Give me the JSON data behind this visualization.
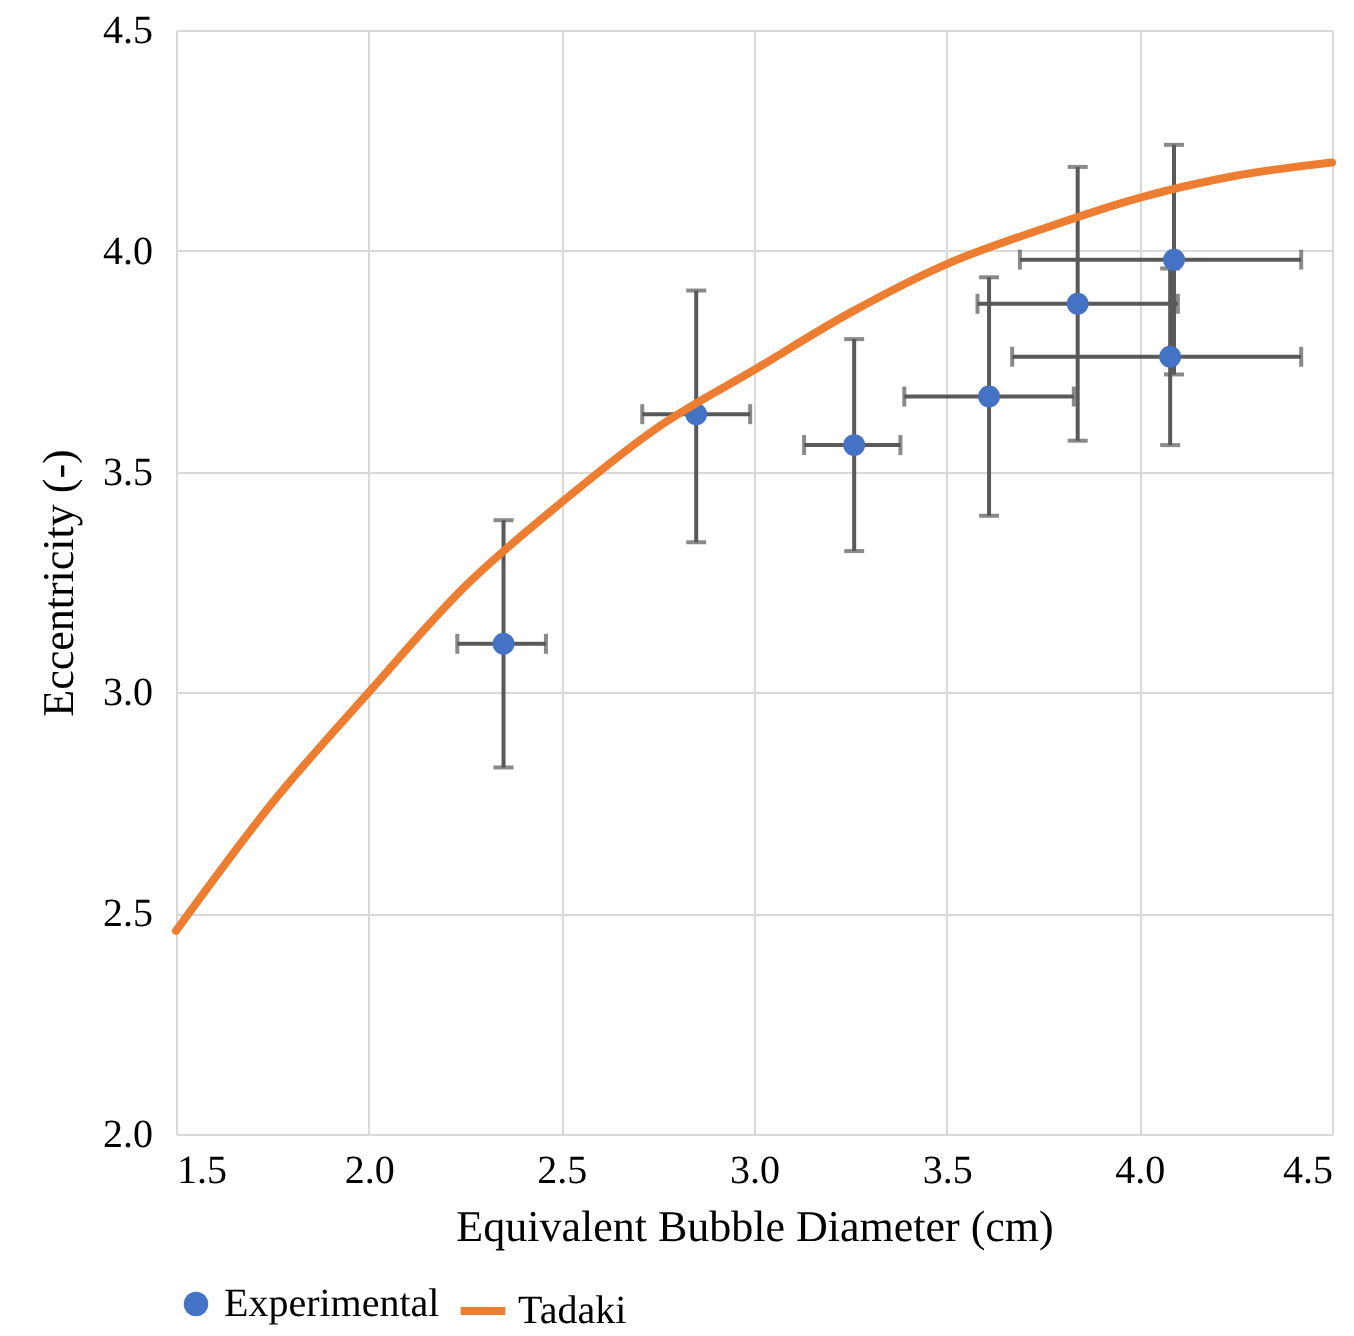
{
  "chart_data": {
    "type": "scatter",
    "xlabel": "Equivalent Bubble Diameter (cm)",
    "ylabel": "Eccentricity (-)",
    "xlim": [
      1.5,
      4.5
    ],
    "ylim": [
      2.0,
      4.5
    ],
    "xticks": [
      1.5,
      {
        "value": 2,
        "label": "2.0"
      },
      2.5,
      {
        "value": 3,
        "label": "3.0"
      },
      3.5,
      {
        "value": 4,
        "label": "4.0"
      },
      4.5
    ],
    "yticks": [
      {
        "value": 2,
        "label": "2.0"
      },
      2.5,
      {
        "value": 3,
        "label": "3.0"
      },
      3.5,
      {
        "value": 4,
        "label": "4.0"
      },
      4.5
    ],
    "grid": true,
    "legend": "bottom",
    "series": [
      {
        "name": "Experimental",
        "color": "#4472c4",
        "marker": "circle",
        "x": [
          2.35,
          2.85,
          3.26,
          3.61,
          3.84,
          4.09,
          4.08
        ],
        "values": [
          3.11,
          3.63,
          3.56,
          3.67,
          3.88,
          3.98,
          3.76
        ],
        "errors": [
          [
            2.83,
            3.39
          ],
          [
            3.34,
            3.91
          ],
          [
            3.32,
            3.8
          ],
          [
            3.4,
            3.94
          ],
          [
            3.57,
            4.19
          ],
          [
            3.72,
            4.24
          ],
          [
            3.56,
            3.96
          ]
        ],
        "xerrors": [
          [
            2.23,
            2.46
          ],
          [
            2.71,
            2.99
          ],
          [
            3.13,
            3.38
          ],
          [
            3.39,
            3.83
          ],
          [
            3.58,
            4.1
          ],
          [
            3.69,
            4.42
          ],
          [
            3.67,
            4.42
          ]
        ]
      },
      {
        "name": "Tadaki",
        "type": "line",
        "color": "#ed7d31",
        "x": [
          1.5,
          1.75,
          2.0,
          2.25,
          2.5,
          2.75,
          3.0,
          3.25,
          3.5,
          3.75,
          4.0,
          4.25,
          4.5
        ],
        "values": [
          2.46,
          2.75,
          3.0,
          3.24,
          3.43,
          3.6,
          3.73,
          3.86,
          3.97,
          4.05,
          4.12,
          4.17,
          4.2
        ]
      }
    ]
  }
}
